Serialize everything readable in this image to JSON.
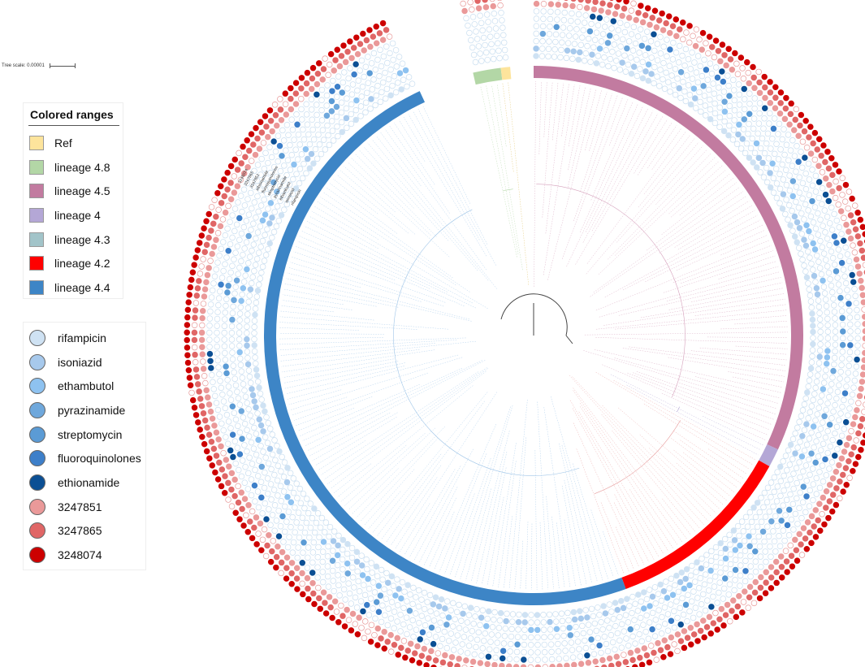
{
  "tree_scale": {
    "label": "Tree scale: 0.00001"
  },
  "colored_ranges": {
    "title": "Colored ranges",
    "items": [
      {
        "label": "Ref",
        "color": "#fde49c"
      },
      {
        "label": "lineage 4.8",
        "color": "#b3d7a6"
      },
      {
        "label": "lineage 4.5",
        "color": "#c27ba0"
      },
      {
        "label": "lineage 4",
        "color": "#b4a7d6"
      },
      {
        "label": "lineage 4.3",
        "color": "#a2c4c9"
      },
      {
        "label": "lineage 4.2",
        "color": "#ff0000"
      },
      {
        "label": "lineage 4.4",
        "color": "#3d85c6"
      }
    ]
  },
  "drug_legend": {
    "items": [
      {
        "label": "rifampicin",
        "color": "#cfe2f3"
      },
      {
        "label": "isoniazid",
        "color": "#a7c9ec"
      },
      {
        "label": "ethambutol",
        "color": "#8ec2f0"
      },
      {
        "label": "pyrazinamide",
        "color": "#6fa8dc"
      },
      {
        "label": "streptomycin",
        "color": "#5b9bd5"
      },
      {
        "label": "fluoroquinolones",
        "color": "#3d7fc9"
      },
      {
        "label": "ethionamide",
        "color": "#0b4f94"
      },
      {
        "label": "3247851",
        "color": "#ea9999"
      },
      {
        "label": "3247865",
        "color": "#e06666"
      },
      {
        "label": "3248074",
        "color": "#cc0000"
      }
    ]
  },
  "ring_labels": {
    "items": [
      "3248074",
      "3247865",
      "3247851",
      "ethionamide",
      "fluoroquinolones",
      "streptomycin",
      "pyrazinamide",
      "ethambutol",
      "isoniazid",
      "rifampicin"
    ]
  },
  "clades": {
    "items": [
      {
        "name": "lineage 4.5",
        "start_deg": 0,
        "end_deg": 115,
        "color": "#c27ba0",
        "branch_color": "#d6a2bd"
      },
      {
        "name": "lineage 4",
        "start_deg": 115,
        "end_deg": 119,
        "color": "#b4a7d6",
        "branch_color": "#b4a7d6"
      },
      {
        "name": "lineage 4.2",
        "start_deg": 119,
        "end_deg": 160,
        "color": "#ff0000",
        "branch_color": "#e8a0a0"
      },
      {
        "name": "lineage 4.4",
        "start_deg": 160,
        "end_deg": 335,
        "color": "#3d85c6",
        "branch_color": "#9fc5e8"
      },
      {
        "name": "lineage 4.8",
        "start_deg": 347,
        "end_deg": 353,
        "color": "#b3d7a6",
        "branch_color": "#b3d7a6"
      },
      {
        "name": "Ref",
        "start_deg": 353,
        "end_deg": 355,
        "color": "#fde49c",
        "branch_color": "#e0c060"
      }
    ]
  }
}
